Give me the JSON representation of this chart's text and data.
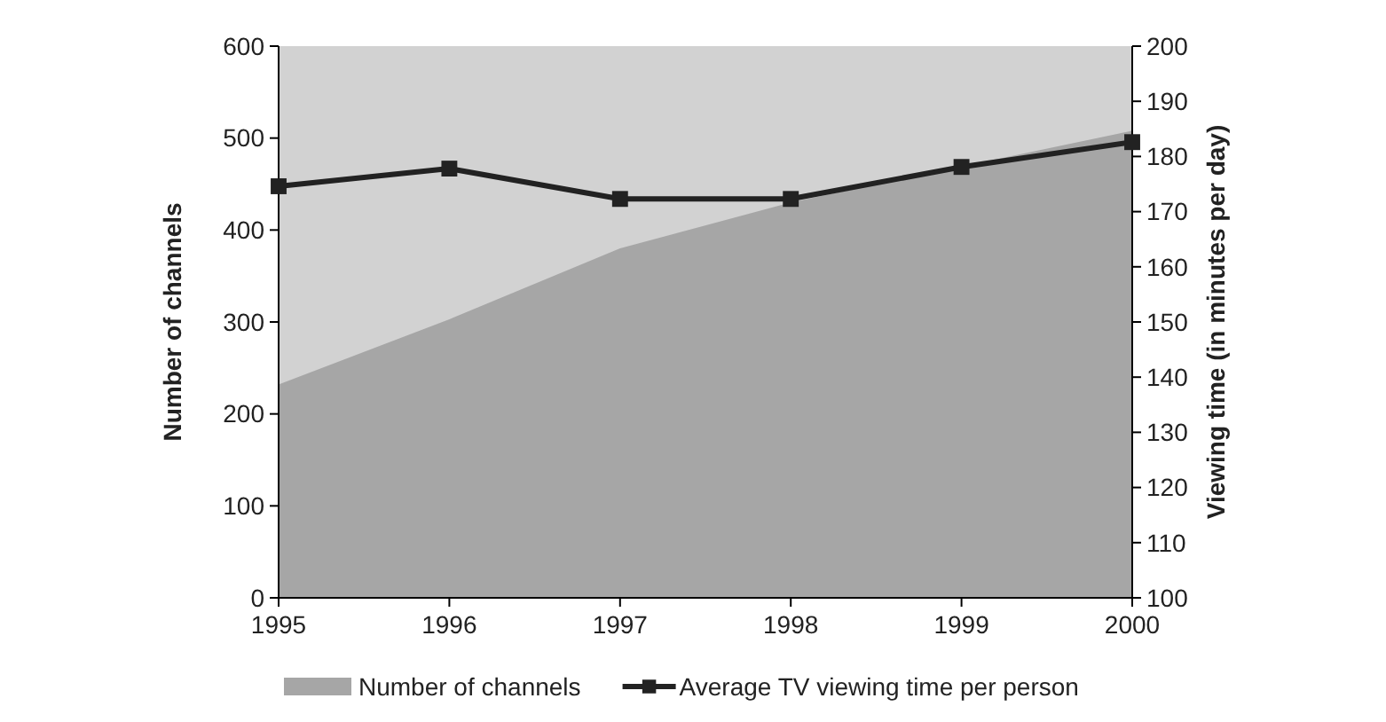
{
  "chart_data": {
    "type": "area",
    "x": [
      1995,
      1996,
      1997,
      1998,
      1999,
      2000
    ],
    "xlim": [
      1995,
      2000
    ],
    "xticks": [
      1995,
      1996,
      1997,
      1998,
      1999,
      2000
    ],
    "ylim": [
      0,
      600
    ],
    "yticks": [
      0,
      100,
      200,
      300,
      400,
      500,
      600
    ],
    "y2lim": [
      100,
      200
    ],
    "y2ticks": [
      100,
      110,
      120,
      130,
      140,
      150,
      160,
      170,
      180,
      190,
      200
    ],
    "ylabel": "Number of channels",
    "y2label": "Viewing time (in minutes per day)",
    "legend": "bottom",
    "grid": false,
    "series": [
      {
        "name": "Number of channels",
        "color": "#a6a6a6",
        "values": [
          232,
          303,
          380,
          430,
          469,
          508
        ]
      },
      {
        "name": "Average TV viewing time per person",
        "type": "line",
        "axis": "y2",
        "color": "#222222",
        "marker": "square",
        "line_style": "solid",
        "values": [
          174.6,
          177.8,
          172.3,
          172.3,
          178.1,
          182.6
        ]
      }
    ]
  }
}
